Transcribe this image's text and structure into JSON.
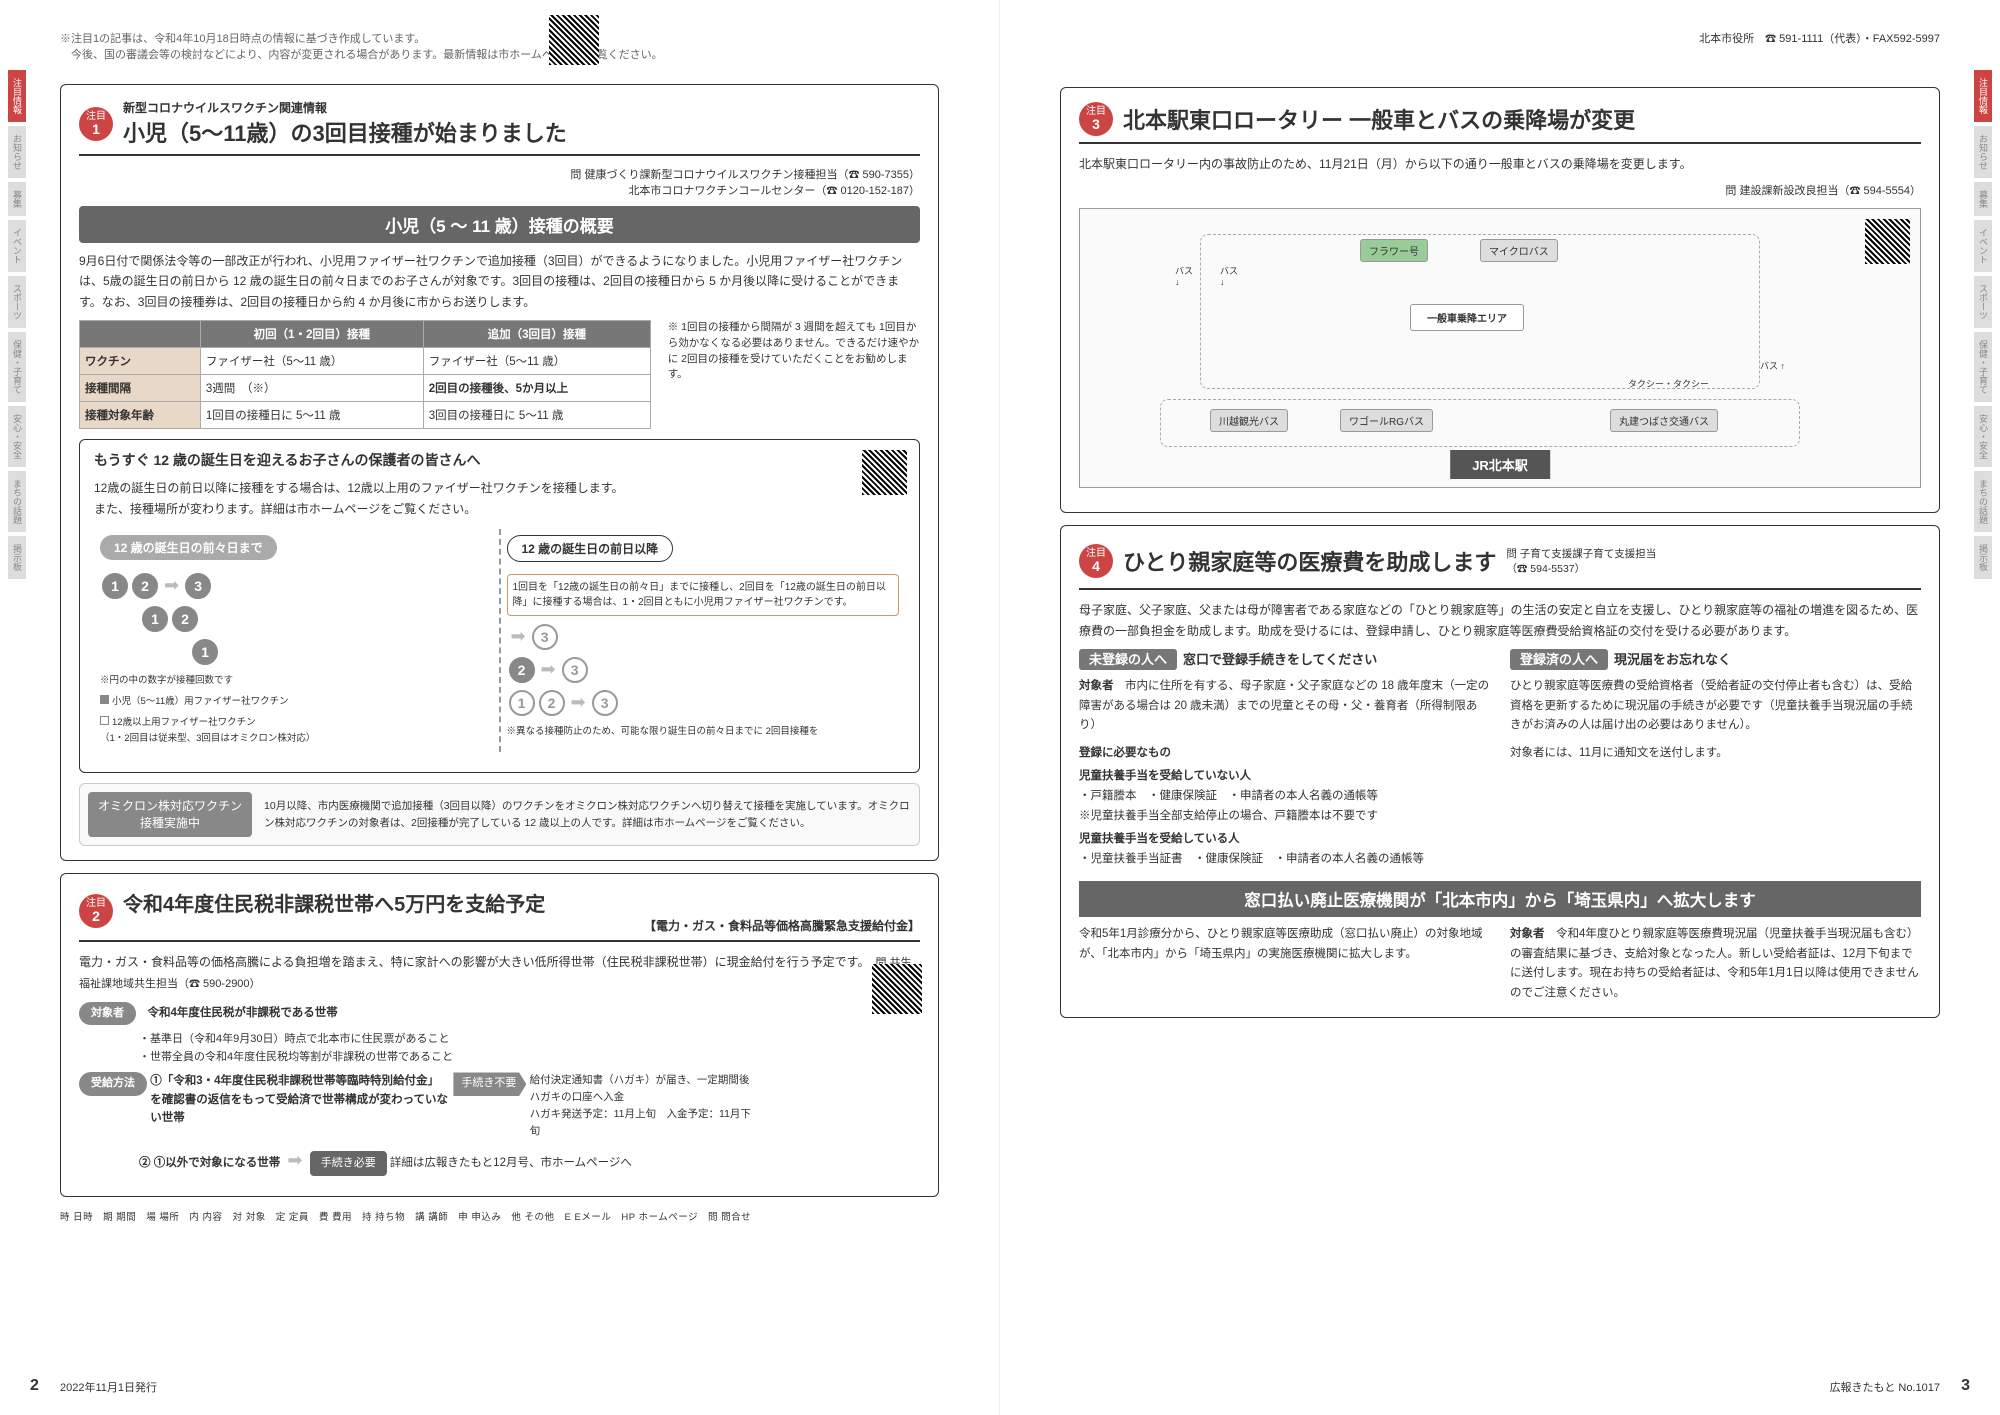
{
  "meta": {
    "top_note": "※注目1の記事は、令和4年10月18日時点の情報に基づき作成しています。\n　今後、国の審議会等の検討などにより、内容が変更される場合があります。最新情報は市ホームページをご覧ください。",
    "header_right": "北本市役所　☎ 591-1111（代表）・FAX592-5997",
    "foot_left_date": "2022年11月1日発行",
    "foot_right": "広報きたもと No.1017",
    "page_left": "2",
    "page_right": "3",
    "footer_legend": "時 日時　期 期間　場 場所　内 内容　対 対象　定 定員　費 費用　持 持ち物　講 講師　申 申込み　他 その他　E Eメール　HP ホームページ　問 問合せ"
  },
  "sidebar": [
    "注目情報",
    "お知らせ",
    "募集",
    "イベント",
    "スポーツ",
    "保健・子育て",
    "安心・安全",
    "まちの話題",
    "掲示板"
  ],
  "sec1": {
    "badge": "注目",
    "num": "1",
    "super": "新型コロナウイルスワクチン関連情報",
    "title": "小児（5～11歳）の3回目接種が始まりました",
    "contact": "問 健康づくり課新型コロナウイルスワクチン接種担当（☎ 590-7355）\n北本市コロナワクチンコールセンター（☎ 0120-152-187）",
    "banner": "小児（5 ～ 11 歳）接種の概要",
    "body": "9月6日付で関係法令等の一部改正が行われ、小児用ファイザー社ワクチンで追加接種（3回目）ができるようになりました。小児用ファイザー社ワクチンは、5歳の誕生日の前日から 12 歳の誕生日の前々日までのお子さんが対象です。3回目の接種は、2回目の接種日から 5 か月後以降に受けることができます。なお、3回目の接種券は、2回目の接種日から約 4 か月後に市からお送りします。",
    "table": {
      "head": [
        "",
        "初回（1・2回目）接種",
        "追加（3回目）接種"
      ],
      "rows": [
        [
          "ワクチン",
          "ファイザー社（5～11 歳）",
          "ファイザー社（5～11 歳）"
        ],
        [
          "接種間隔",
          "3週間　（※）",
          "2回目の接種後、5か月以上"
        ],
        [
          "接種対象年齢",
          "1回目の接種日に 5～11 歳",
          "3回目の接種日に 5～11 歳"
        ]
      ],
      "note": "※ 1回目の接種から間隔が 3 週間を超えても 1回目から効かなくなる必要はありません。できるだけ速やかに 2回目の接種を受けていただくことをお勧めします。"
    },
    "subbox": {
      "title": "もうすぐ 12 歳の誕生日を迎えるお子さんの保護者の皆さんへ",
      "text": "12歳の誕生日の前日以降に接種をする場合は、12歳以上用のファイザー社ワクチンを接種します。\nまた、接種場所が変わります。詳細は市ホームページをご覧ください。",
      "pill_left": "12 歳の誕生日の前々日まで",
      "pill_right": "12 歳の誕生日の前日以降",
      "diag_note": "1回目を「12歳の誕生日の前々日」までに接種し、2回目を「12歳の誕生日の前日以降」に接種する場合は、1・2回目ともに小児用ファイザー社ワクチンです。",
      "diag_note2": "※異なる接種防止のため、可能な限り誕生日の前々日までに 2回目接種を",
      "legend_note": "※円の中の数字が接種回数です",
      "legend1": "小児（5～11歳）用ファイザー社ワクチン",
      "legend2": "12歳以上用ファイザー社ワクチン\n（1・2回目は従来型、3回目はオミクロン株対応）"
    },
    "omicron": {
      "label": "オミクロン株対応ワクチン\n接種実施中",
      "text": "10月以降、市内医療機関で追加接種（3回目以降）のワクチンをオミクロン株対応ワクチンへ切り替えて接種を実施しています。オミクロン株対応ワクチンの対象者は、2回接種が完了している 12 歳以上の人です。詳細は市ホームページをご覧ください。"
    }
  },
  "sec2": {
    "badge": "注目",
    "num": "2",
    "title": "令和4年度住民税非課税世帯へ5万円を支給予定",
    "sub": "【電力・ガス・食料品等価格高騰緊急支援給付金】",
    "body": "電力・ガス・食料品等の価格高騰による負担増を踏まえ、特に家計への影響が大きい低所得世帯（住民税非課税世帯）に現金給付を行う予定です。",
    "contact": "問 共生福祉課地域共生担当（☎ 590-2900）",
    "target_label": "対象者",
    "target": "令和4年度住民税が非課税である世帯",
    "target_notes": "・基準日（令和4年9月30日）時点で北本市に住民票があること\n・世帯全員の令和4年度住民税均等割が非課税の世帯であること",
    "method_label": "受給方法",
    "method1_head": "①「令和3・4年度住民税非課税世帯等臨時特別給付金」を確認書の返信をもって受給済で世帯構成が変わっていない世帯",
    "method1_tag": "手続き不要",
    "method1_text": "給付決定通知書（ハガキ）が届き、一定期間後ハガキの口座へ入金\nハガキ発送予定：11月上旬　入金予定：11月下旬",
    "method2_head": "② ①以外で対象になる世帯",
    "method2_tag": "手続き必要",
    "method2_text": "詳細は広報きたもと12月号、市ホームページへ"
  },
  "sec3": {
    "badge": "注目",
    "num": "3",
    "title": "北本駅東口ロータリー 一般車とバスの乗降場が変更",
    "lead": "北本駅東口ロータリー内の事故防止のため、11月21日（月）から以下の通り一般車とバスの乗降場を変更します。",
    "contact": "問 建設課新設改良担当（☎ 594-5554）",
    "map": {
      "labels": [
        "フラワー号",
        "マイクロバス",
        "一般車乗降エリア",
        "川越観光バス",
        "ワゴールRGバス",
        "丸建つばさ交通バス",
        "タクシー・タクシー"
      ],
      "station": "JR北本駅",
      "bus_stops": [
        "バス",
        "バス",
        "バス",
        "バス"
      ]
    }
  },
  "sec4": {
    "badge": "注目",
    "num": "4",
    "title": "ひとり親家庭等の医療費を助成します",
    "contact": "問 子育て支援課子育て支援担当（☎ 594-5537）",
    "body": "母子家庭、父子家庭、父または母が障害者である家庭などの「ひとり親家庭等」の生活の安定と自立を支援し、ひとり親家庭等の福祉の増進を図るため、医療費の一部負担金を助成します。助成を受けるには、登録申請し、ひとり親家庭等医療費受給資格証の交付を受ける必要があります。",
    "col1": {
      "head_tag": "未登録の人へ",
      "head": "窓口で登録手続きをしてください",
      "target_label": "対象者",
      "target": "市内に住所を有する、母子家庭・父子家庭などの 18 歳年度末（一定の障害がある場合は 20 歳未満）までの児童とその母・父・養育者（所得制限あり）",
      "docs_label": "登録に必要なもの",
      "docs_h1": "児童扶養手当を受給していない人",
      "docs_1": "・戸籍謄本　・健康保険証　・申請者の本人名義の通帳等\n※児童扶養手当全部支給停止の場合、戸籍謄本は不要です",
      "docs_h2": "児童扶養手当を受給している人",
      "docs_2": "・児童扶養手当証書　・健康保険証　・申請者の本人名義の通帳等"
    },
    "col2": {
      "head_tag": "登録済の人へ",
      "head": "現況届をお忘れなく",
      "text": "ひとり親家庭等医療費の受給資格者（受給者証の交付停止者も含む）は、受給資格を更新するために現況届の手続きが必要です（児童扶養手当現況届の手続きがお済みの人は届け出の必要はありません）。",
      "text2": "対象者には、11月に通知文を送付します。"
    },
    "banner": "窓口払い廃止医療機関が「北本市内」から「埼玉県内」へ拡大します",
    "bottom_left": "令和5年1月診療分から、ひとり親家庭等医療助成（窓口払い廃止）の対象地域が、「北本市内」から「埼玉県内」の実施医療機関に拡大します。",
    "bottom_right_label": "対象者",
    "bottom_right": "令和4年度ひとり親家庭等医療費現況届（児童扶養手当現況届も含む）の審査結果に基づき、支給対象となった人。新しい受給者証は、12月下旬までに送付します。現在お持ちの受給者証は、令和5年1月1日以降は使用できませんのでご注意ください。"
  }
}
